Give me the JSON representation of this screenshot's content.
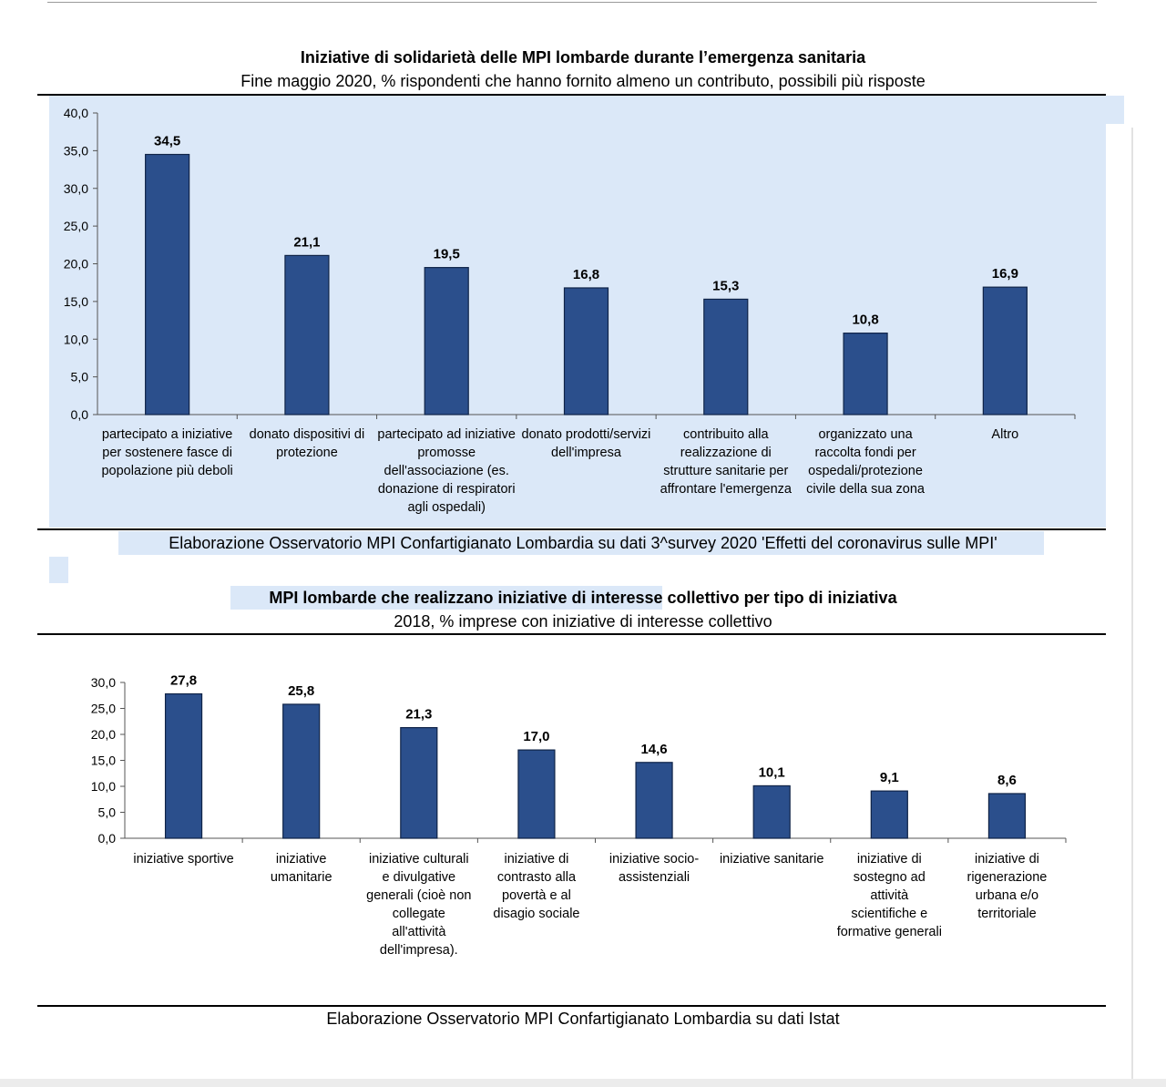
{
  "charts": [
    {
      "title": "Iniziative di solidarietà delle MPI lombarde durante l’emergenza sanitaria",
      "subtitle": "Fine maggio 2020, % rispondenti che hanno fornito almeno un contributo, possibili più risposte",
      "source": "Elaborazione Osservatorio MPI Confartigianato Lombardia su dati 3^survey 2020  'Effetti del coronavirus sulle MPI'",
      "y_tick_labels": [
        "0,0",
        "5,0",
        "10,0",
        "15,0",
        "20,0",
        "25,0",
        "30,0",
        "35,0",
        "40,0"
      ],
      "value_labels": [
        "34,5",
        "21,1",
        "19,5",
        "16,8",
        "15,3",
        "10,8",
        "16,9"
      ],
      "category_lines": [
        [
          "partecipato a iniziative",
          "per sostenere fasce di",
          "popolazione più deboli"
        ],
        [
          "donato dispositivi di",
          "protezione"
        ],
        [
          "partecipato ad iniziative",
          "promosse",
          "dell'associazione (es.",
          "donazione di respiratori",
          "agli ospedali)"
        ],
        [
          "donato prodotti/servizi",
          "dell'impresa"
        ],
        [
          "contribuito alla",
          "realizzazione di",
          "strutture sanitarie per",
          "affrontare l'emergenza"
        ],
        [
          "organizzato una",
          "raccolta fondi per",
          "ospedali/protezione",
          "civile della sua zona"
        ],
        [
          "Altro"
        ]
      ]
    },
    {
      "title": "MPI lombarde che realizzano iniziative di interesse collettivo per tipo di iniziativa",
      "subtitle": "2018, % imprese con iniziative di interesse collettivo",
      "source": "Elaborazione Osservatorio MPI Confartigianato Lombardia su dati Istat",
      "y_tick_labels": [
        "0,0",
        "5,0",
        "10,0",
        "15,0",
        "20,0",
        "25,0",
        "30,0"
      ],
      "value_labels": [
        "27,8",
        "25,8",
        "21,3",
        "17,0",
        "14,6",
        "10,1",
        "9,1",
        "8,6"
      ],
      "category_lines": [
        [
          "iniziative sportive"
        ],
        [
          "iniziative",
          "umanitarie"
        ],
        [
          "iniziative culturali",
          "e divulgative",
          "generali (cioè non",
          "collegate",
          "all'attività",
          "dell'impresa)."
        ],
        [
          "iniziative di",
          "contrasto alla",
          "povertà  e al",
          "disagio sociale"
        ],
        [
          "iniziative socio-",
          "assistenziali"
        ],
        [
          "iniziative sanitarie"
        ],
        [
          "iniziative di",
          "sostegno ad",
          "attività",
          "scientifiche e",
          "formative generali"
        ],
        [
          "iniziative di",
          "rigenerazione",
          "urbana e/o",
          "territoriale"
        ]
      ]
    }
  ],
  "colors": {
    "bar": "#2b4f8c",
    "panel_highlight": "#dbe8f8",
    "axis": "#555555"
  },
  "chart_data": [
    {
      "type": "bar",
      "title": "Iniziative di solidarietà delle MPI lombarde durante l’emergenza sanitaria",
      "subtitle": "Fine maggio 2020, % rispondenti che hanno fornito almeno un contributo, possibili più risposte",
      "categories": [
        "partecipato a iniziative per sostenere fasce di popolazione più deboli",
        "donato dispositivi di protezione",
        "partecipato ad iniziative promosse dell'associazione (es. donazione di respiratori agli ospedali)",
        "donato prodotti/servizi dell'impresa",
        "contribuito alla realizzazione di strutture sanitarie per affrontare l'emergenza",
        "organizzato una raccolta fondi per ospedali/protezione civile della sua zona",
        "Altro"
      ],
      "values": [
        34.5,
        21.1,
        19.5,
        16.8,
        15.3,
        10.8,
        16.9
      ],
      "xlabel": "",
      "ylabel": "",
      "ylim": [
        0,
        40
      ],
      "ytick_step": 5,
      "grid": false,
      "legend": "none"
    },
    {
      "type": "bar",
      "title": "MPI lombarde che realizzano iniziative di interesse collettivo per tipo di iniziativa",
      "subtitle": "2018, % imprese con iniziative di interesse collettivo",
      "categories": [
        "iniziative sportive",
        "iniziative umanitarie",
        "iniziative culturali e divulgative generali (cioè non collegate all'attività dell'impresa).",
        "iniziative di contrasto alla povertà  e al disagio sociale",
        "iniziative socio-assistenziali",
        "iniziative sanitarie",
        "iniziative di sostegno ad attività scientifiche e formative generali",
        "iniziative di rigenerazione urbana e/o territoriale"
      ],
      "values": [
        27.8,
        25.8,
        21.3,
        17.0,
        14.6,
        10.1,
        9.1,
        8.6
      ],
      "xlabel": "",
      "ylabel": "",
      "ylim": [
        0,
        30
      ],
      "ytick_step": 5,
      "grid": false,
      "legend": "none"
    }
  ]
}
